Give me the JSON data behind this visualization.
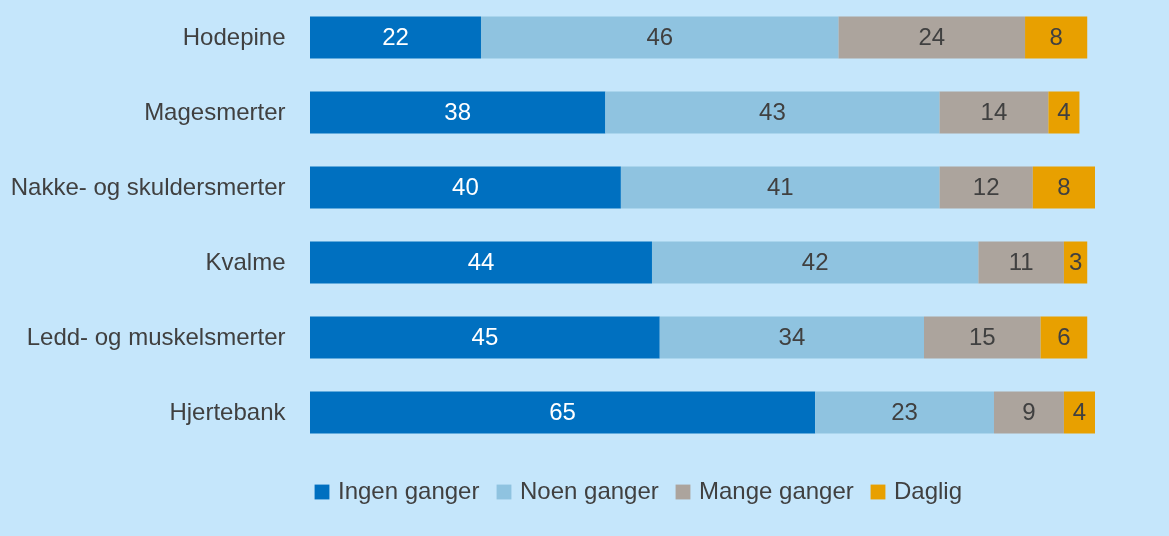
{
  "chart_data": {
    "type": "bar",
    "orientation": "horizontal",
    "stacked": true,
    "data_labels": true,
    "legend": "bottom",
    "grid": false,
    "tick_labels": "y",
    "xlim": [
      0,
      101
    ],
    "categories": [
      "Hodepine",
      "Magesmerter",
      "Nakke- og skuldersmerter",
      "Kvalme",
      "Ledd- og muskelsmerter",
      "Hjertebank"
    ],
    "series": [
      {
        "name": "Ingen ganger",
        "color": "#0070c0",
        "values": [
          22,
          38,
          40,
          44,
          45,
          65
        ]
      },
      {
        "name": "Noen ganger",
        "color": "#8fc3e0",
        "values": [
          46,
          43,
          41,
          42,
          34,
          23
        ]
      },
      {
        "name": "Mange ganger",
        "color": "#aca49d",
        "values": [
          24,
          14,
          12,
          11,
          15,
          9
        ]
      },
      {
        "name": "Daglig",
        "color": "#e8a000",
        "values": [
          8,
          4,
          8,
          3,
          6,
          4
        ]
      }
    ]
  }
}
